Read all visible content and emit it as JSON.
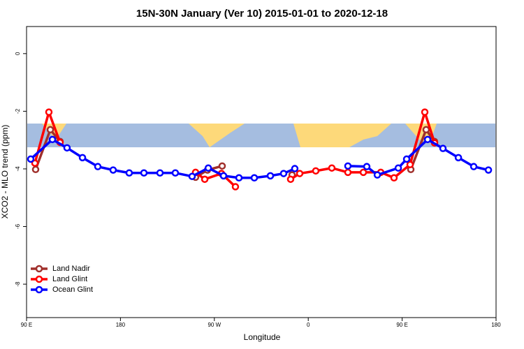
{
  "chart_data": {
    "type": "line",
    "title": "15N-30N January (Ver 10)   2015-01-01 to 2020-12-18",
    "x_label": "Longitude",
    "y_label": "XCO2 - MLO trend (ppm)",
    "xlim": [
      -270,
      180
    ],
    "ylim": [
      -9.16,
      0.94
    ],
    "xticks": [
      {
        "value": -270,
        "label": "90 E"
      },
      {
        "value": -180,
        "label": "180"
      },
      {
        "value": -90,
        "label": "90 W"
      },
      0,
      {
        "value": 90,
        "label": "90 E"
      },
      {
        "value": 180,
        "label": "180"
      }
    ],
    "yticks": [
      0,
      -2,
      -4,
      -6,
      -8
    ],
    "legend": "bottom-left",
    "series": [
      {
        "name": "Land Nadir",
        "color": "#a0302c",
        "x": [
          -261.3,
          -247.2,
          -237.9,
          null,
          -108,
          -96.6,
          -82.5,
          null,
          -15.5,
          null,
          98.3,
          113,
          121
        ],
        "values": [
          -4.02,
          -2.64,
          -3.05,
          null,
          -4.29,
          -4.04,
          -3.9,
          null,
          -4.21,
          null,
          -4.02,
          -2.64,
          -3.05
        ]
      },
      {
        "name": "Land Glint",
        "color": "#ff0000",
        "x": [
          -262,
          -248.6,
          -237.9,
          null,
          -108,
          -99.2,
          -83.2,
          -69.8,
          null,
          -16.9,
          -8.2,
          7.2,
          22.6,
          38,
          52.8,
          69.5,
          82.2,
          97.6,
          111.7,
          121.1
        ],
        "values": [
          -3.8,
          -2.03,
          -3.08,
          null,
          -4.12,
          -4.36,
          -4.16,
          -4.62,
          null,
          -4.36,
          -4.16,
          -4.07,
          -3.97,
          -4.12,
          -4.12,
          -4.12,
          -4.31,
          -3.85,
          -2.03,
          -3.1
        ]
      },
      {
        "name": "Ocean Glint",
        "color": "#0000ff",
        "x": [
          -266,
          -245.2,
          -231.2,
          -216.4,
          -201.7,
          -187,
          -171.6,
          -157.5,
          -142.1,
          -127.4,
          -111.3,
          -95.8,
          -81.2,
          -66.4,
          -51.7,
          -36.3,
          -23.6,
          -12.9,
          null,
          38,
          56.1,
          66.2,
          86.3,
          94.3,
          114.4,
          129.1,
          143.9,
          158.6,
          172.7
        ],
        "values": [
          -3.66,
          -2.98,
          -3.27,
          -3.61,
          -3.92,
          -4.04,
          -4.14,
          -4.14,
          -4.14,
          -4.14,
          -4.26,
          -3.97,
          -4.24,
          -4.31,
          -4.31,
          -4.24,
          -4.16,
          -3.99,
          null,
          -3.9,
          -3.92,
          -4.21,
          -3.97,
          -3.66,
          -2.98,
          -3.29,
          -3.61,
          -3.92,
          -4.04
        ]
      }
    ]
  }
}
